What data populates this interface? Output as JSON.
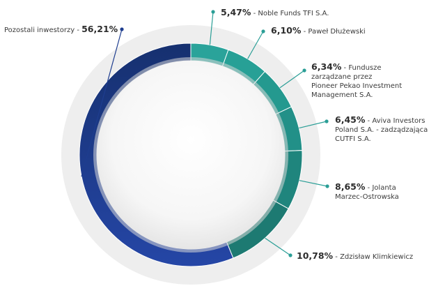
{
  "chart_data": {
    "type": "pie",
    "style": "donut",
    "slices": [
      {
        "name": "Noble Funds TFI S.A.",
        "value": 5.47,
        "label_pct": "5,47%",
        "color": "#2aa39a"
      },
      {
        "name": "Paweł Dłużewski",
        "value": 6.1,
        "label_pct": "6,10%",
        "color": "#27a096"
      },
      {
        "name": "Fundusze zarządzane przez Pioneer Pekao Investment Management S.A.",
        "value": 6.34,
        "label_pct": "6,34%",
        "color": "#24998f"
      },
      {
        "name": "Aviva Investors Poland S.A. - zadządzająca CUTFI S.A.",
        "value": 6.45,
        "label_pct": "6,45%",
        "color": "#229088"
      },
      {
        "name": "Jolanta Marzec-Ostrowska",
        "value": 8.65,
        "label_pct": "8,65%",
        "color": "#1f857d"
      },
      {
        "name": "Zdzisław Klimkiewicz",
        "value": 10.78,
        "label_pct": "10,78%",
        "color": "#1d7a72"
      },
      {
        "name": "Pozostali inwestorzy",
        "value": 56.21,
        "label_pct": "56,21%",
        "color": "#1e3d8f"
      }
    ],
    "legend": "none",
    "labels": "outside-with-leader-lines"
  },
  "labels": [
    {
      "pct": "5,47%",
      "lines": [
        "Noble Funds TFI S.A."
      ]
    },
    {
      "pct": "6,10%",
      "lines": [
        "Paweł Dłużewski"
      ]
    },
    {
      "pct": "6,34%",
      "lines": [
        "Fundusze",
        "zarządzane przez",
        "Pioneer Pekao Investment",
        "Management S.A."
      ]
    },
    {
      "pct": "6,45%",
      "lines": [
        "Aviva Investors",
        "Poland S.A. - zadządzająca",
        "CUTFI S.A."
      ]
    },
    {
      "pct": "8,65%",
      "lines": [
        "Jolanta",
        "Marzec-Ostrowska"
      ]
    },
    {
      "pct": "10,78%",
      "lines": [
        "Zdzisław Klimkiewicz"
      ]
    },
    {
      "pct": "56,21%",
      "lines": [
        "Pozostali inwestorzy"
      ]
    }
  ]
}
